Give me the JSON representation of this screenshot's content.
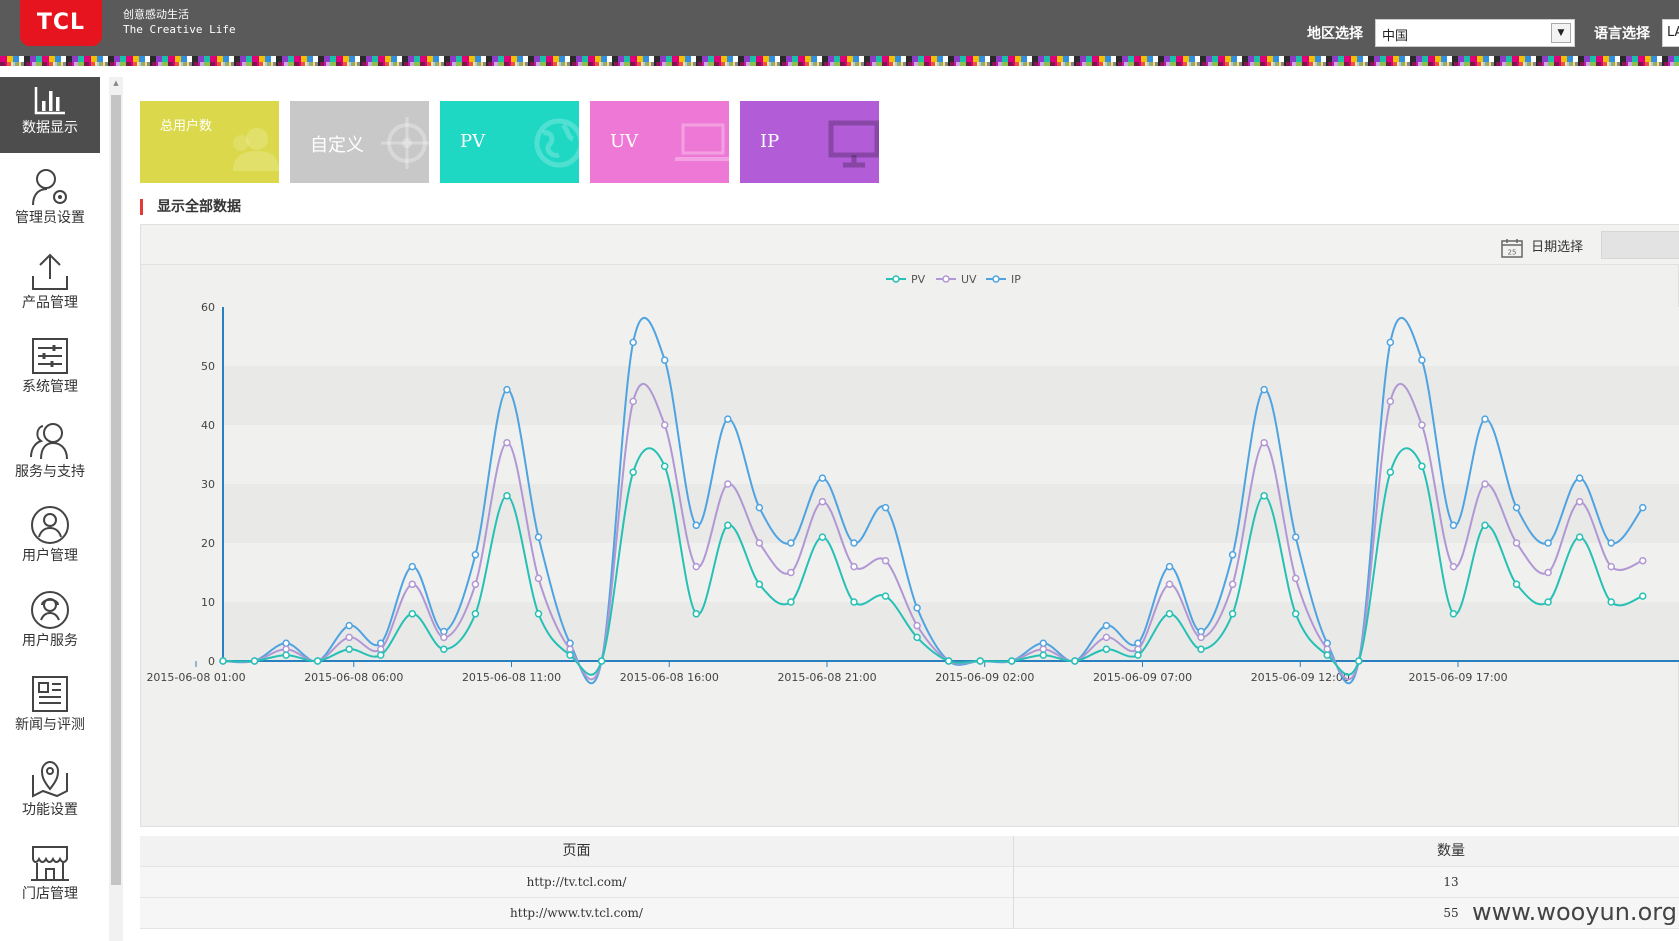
{
  "header": {
    "logo": "TCL",
    "slogan_cn": "创意感动生活",
    "slogan_en": "The Creative Life",
    "region_label": "地区选择",
    "region_value": "中国",
    "lang_label": "语言选择",
    "lang_value": "LA"
  },
  "sidebar": {
    "items": [
      {
        "label": "数据显示",
        "icon": "bar-chart-icon"
      },
      {
        "label": "管理员设置",
        "icon": "user-gear-icon"
      },
      {
        "label": "产品管理",
        "icon": "upload-icon"
      },
      {
        "label": "系统管理",
        "icon": "sliders-icon"
      },
      {
        "label": "服务与支持",
        "icon": "users-icon"
      },
      {
        "label": "用户管理",
        "icon": "user-circle-icon"
      },
      {
        "label": "用户服务",
        "icon": "user-service-icon"
      },
      {
        "label": "新闻与评测",
        "icon": "newspaper-icon"
      },
      {
        "label": "功能设置",
        "icon": "map-pin-icon"
      },
      {
        "label": "门店管理",
        "icon": "store-icon"
      }
    ]
  },
  "tiles": [
    {
      "label": "总用户数",
      "color": "#dbd94b",
      "icon": "users-icon"
    },
    {
      "label": "自定义",
      "color": "#c8c8c8",
      "icon": "crosshair-icon"
    },
    {
      "label": "PV",
      "color": "#1ed8c4",
      "icon": "globe-icon"
    },
    {
      "label": "UV",
      "color": "#ee78d6",
      "icon": "laptop-icon"
    },
    {
      "label": "IP",
      "color": "#b25cd8",
      "icon": "monitor-icon"
    }
  ],
  "section_title": "显示全部数据",
  "chart_toolbar": {
    "date_label": "日期选择",
    "date_icon": "calendar-icon",
    "date_day": "25"
  },
  "chart_data": {
    "type": "line",
    "legend_position": "top-center",
    "x": [
      "2015-06-08 01:00",
      "02:00",
      "03:00",
      "04:00",
      "05:00",
      "2015-06-08 06:00",
      "07:00",
      "08:00",
      "09:00",
      "10:00",
      "2015-06-08 11:00",
      "12:00",
      "13:00",
      "14:00",
      "15:00",
      "2015-06-08 16:00",
      "17:00",
      "18:00",
      "19:00",
      "20:00",
      "2015-06-08 21:00",
      "22:00",
      "23:00",
      "00:00",
      "01:00",
      "2015-06-09 02:00",
      "03:00",
      "04:00",
      "05:00",
      "06:00",
      "2015-06-09 07:00",
      "08:00",
      "09:00",
      "10:00",
      "11:00",
      "2015-06-09 12:00",
      "13:00",
      "14:00",
      "15:00",
      "16:00",
      "2015-06-09 17:00",
      "18:00",
      "19:00",
      "20:00",
      "21:00",
      "22:00"
    ],
    "tick_labels": [
      "2015-06-08 01:00",
      "2015-06-08 06:00",
      "2015-06-08 11:00",
      "2015-06-08 16:00",
      "2015-06-08 21:00",
      "2015-06-09 02:00",
      "2015-06-09 07:00",
      "2015-06-09 12:00",
      "2015-06-09 17:00"
    ],
    "ylim": [
      0,
      60
    ],
    "yticks": [
      0,
      10,
      20,
      30,
      40,
      50,
      60
    ],
    "grid": "horizontal-bands",
    "series": [
      {
        "name": "PV",
        "color": "#26c0b5",
        "values": [
          0,
          0,
          1,
          0,
          2,
          1,
          8,
          2,
          8,
          28,
          8,
          1,
          0,
          32,
          33,
          8,
          23,
          13,
          10,
          21,
          10,
          11,
          4,
          0,
          0,
          0,
          1,
          0,
          2,
          1,
          8,
          2,
          8,
          28,
          8,
          1,
          0,
          32,
          33,
          8,
          23,
          13,
          10,
          21,
          10,
          11
        ]
      },
      {
        "name": "UV",
        "color": "#b197d4",
        "values": [
          0,
          0,
          2,
          0,
          4,
          2,
          13,
          4,
          13,
          37,
          14,
          2,
          0,
          44,
          40,
          16,
          30,
          20,
          15,
          27,
          16,
          17,
          6,
          0,
          0,
          0,
          2,
          0,
          4,
          2,
          13,
          4,
          13,
          37,
          14,
          2,
          0,
          44,
          40,
          16,
          30,
          20,
          15,
          27,
          16,
          17
        ]
      },
      {
        "name": "IP",
        "color": "#4fa3e0",
        "values": [
          0,
          0,
          3,
          0,
          6,
          3,
          16,
          5,
          18,
          46,
          21,
          3,
          0,
          54,
          51,
          23,
          41,
          26,
          20,
          31,
          20,
          26,
          9,
          0,
          0,
          0,
          3,
          0,
          6,
          3,
          16,
          5,
          18,
          46,
          21,
          3,
          0,
          54,
          51,
          23,
          41,
          26,
          20,
          31,
          20,
          26
        ]
      }
    ]
  },
  "table": {
    "headers": [
      "页面",
      "数量"
    ],
    "rows": [
      [
        "http://tv.tcl.com/",
        "13"
      ],
      [
        "http://www.tv.tcl.com/",
        "55"
      ]
    ]
  },
  "watermark": "www.wooyun.org"
}
